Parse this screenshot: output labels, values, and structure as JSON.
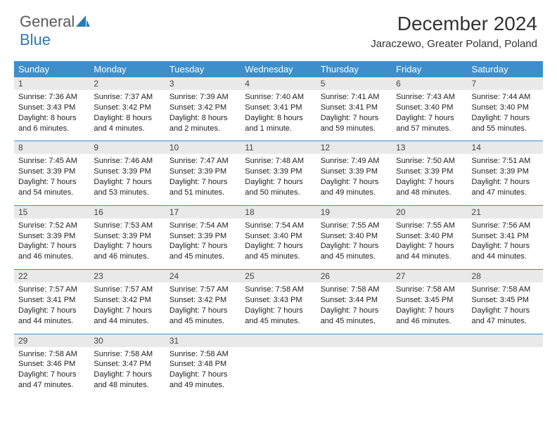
{
  "logo": {
    "part1": "General",
    "part2": "Blue"
  },
  "title": "December 2024",
  "location": "Jaraczewo, Greater Poland, Poland",
  "colors": {
    "header_bg": "#3d8ecb",
    "header_text": "#ffffff",
    "daynum_bg": "#e9e9e9",
    "rule": "#3d8ecb",
    "logo_gray": "#5a5a5a",
    "logo_blue": "#2a7ab8"
  },
  "daynames": [
    "Sunday",
    "Monday",
    "Tuesday",
    "Wednesday",
    "Thursday",
    "Friday",
    "Saturday"
  ],
  "weeks": [
    [
      {
        "n": "1",
        "sr": "Sunrise: 7:36 AM",
        "ss": "Sunset: 3:43 PM",
        "dl": "Daylight: 8 hours and 6 minutes."
      },
      {
        "n": "2",
        "sr": "Sunrise: 7:37 AM",
        "ss": "Sunset: 3:42 PM",
        "dl": "Daylight: 8 hours and 4 minutes."
      },
      {
        "n": "3",
        "sr": "Sunrise: 7:39 AM",
        "ss": "Sunset: 3:42 PM",
        "dl": "Daylight: 8 hours and 2 minutes."
      },
      {
        "n": "4",
        "sr": "Sunrise: 7:40 AM",
        "ss": "Sunset: 3:41 PM",
        "dl": "Daylight: 8 hours and 1 minute."
      },
      {
        "n": "5",
        "sr": "Sunrise: 7:41 AM",
        "ss": "Sunset: 3:41 PM",
        "dl": "Daylight: 7 hours and 59 minutes."
      },
      {
        "n": "6",
        "sr": "Sunrise: 7:43 AM",
        "ss": "Sunset: 3:40 PM",
        "dl": "Daylight: 7 hours and 57 minutes."
      },
      {
        "n": "7",
        "sr": "Sunrise: 7:44 AM",
        "ss": "Sunset: 3:40 PM",
        "dl": "Daylight: 7 hours and 55 minutes."
      }
    ],
    [
      {
        "n": "8",
        "sr": "Sunrise: 7:45 AM",
        "ss": "Sunset: 3:39 PM",
        "dl": "Daylight: 7 hours and 54 minutes."
      },
      {
        "n": "9",
        "sr": "Sunrise: 7:46 AM",
        "ss": "Sunset: 3:39 PM",
        "dl": "Daylight: 7 hours and 53 minutes."
      },
      {
        "n": "10",
        "sr": "Sunrise: 7:47 AM",
        "ss": "Sunset: 3:39 PM",
        "dl": "Daylight: 7 hours and 51 minutes."
      },
      {
        "n": "11",
        "sr": "Sunrise: 7:48 AM",
        "ss": "Sunset: 3:39 PM",
        "dl": "Daylight: 7 hours and 50 minutes."
      },
      {
        "n": "12",
        "sr": "Sunrise: 7:49 AM",
        "ss": "Sunset: 3:39 PM",
        "dl": "Daylight: 7 hours and 49 minutes."
      },
      {
        "n": "13",
        "sr": "Sunrise: 7:50 AM",
        "ss": "Sunset: 3:39 PM",
        "dl": "Daylight: 7 hours and 48 minutes."
      },
      {
        "n": "14",
        "sr": "Sunrise: 7:51 AM",
        "ss": "Sunset: 3:39 PM",
        "dl": "Daylight: 7 hours and 47 minutes."
      }
    ],
    [
      {
        "n": "15",
        "sr": "Sunrise: 7:52 AM",
        "ss": "Sunset: 3:39 PM",
        "dl": "Daylight: 7 hours and 46 minutes."
      },
      {
        "n": "16",
        "sr": "Sunrise: 7:53 AM",
        "ss": "Sunset: 3:39 PM",
        "dl": "Daylight: 7 hours and 46 minutes."
      },
      {
        "n": "17",
        "sr": "Sunrise: 7:54 AM",
        "ss": "Sunset: 3:39 PM",
        "dl": "Daylight: 7 hours and 45 minutes."
      },
      {
        "n": "18",
        "sr": "Sunrise: 7:54 AM",
        "ss": "Sunset: 3:40 PM",
        "dl": "Daylight: 7 hours and 45 minutes."
      },
      {
        "n": "19",
        "sr": "Sunrise: 7:55 AM",
        "ss": "Sunset: 3:40 PM",
        "dl": "Daylight: 7 hours and 45 minutes."
      },
      {
        "n": "20",
        "sr": "Sunrise: 7:55 AM",
        "ss": "Sunset: 3:40 PM",
        "dl": "Daylight: 7 hours and 44 minutes."
      },
      {
        "n": "21",
        "sr": "Sunrise: 7:56 AM",
        "ss": "Sunset: 3:41 PM",
        "dl": "Daylight: 7 hours and 44 minutes."
      }
    ],
    [
      {
        "n": "22",
        "sr": "Sunrise: 7:57 AM",
        "ss": "Sunset: 3:41 PM",
        "dl": "Daylight: 7 hours and 44 minutes."
      },
      {
        "n": "23",
        "sr": "Sunrise: 7:57 AM",
        "ss": "Sunset: 3:42 PM",
        "dl": "Daylight: 7 hours and 44 minutes."
      },
      {
        "n": "24",
        "sr": "Sunrise: 7:57 AM",
        "ss": "Sunset: 3:42 PM",
        "dl": "Daylight: 7 hours and 45 minutes."
      },
      {
        "n": "25",
        "sr": "Sunrise: 7:58 AM",
        "ss": "Sunset: 3:43 PM",
        "dl": "Daylight: 7 hours and 45 minutes."
      },
      {
        "n": "26",
        "sr": "Sunrise: 7:58 AM",
        "ss": "Sunset: 3:44 PM",
        "dl": "Daylight: 7 hours and 45 minutes."
      },
      {
        "n": "27",
        "sr": "Sunrise: 7:58 AM",
        "ss": "Sunset: 3:45 PM",
        "dl": "Daylight: 7 hours and 46 minutes."
      },
      {
        "n": "28",
        "sr": "Sunrise: 7:58 AM",
        "ss": "Sunset: 3:45 PM",
        "dl": "Daylight: 7 hours and 47 minutes."
      }
    ],
    [
      {
        "n": "29",
        "sr": "Sunrise: 7:58 AM",
        "ss": "Sunset: 3:46 PM",
        "dl": "Daylight: 7 hours and 47 minutes."
      },
      {
        "n": "30",
        "sr": "Sunrise: 7:58 AM",
        "ss": "Sunset: 3:47 PM",
        "dl": "Daylight: 7 hours and 48 minutes."
      },
      {
        "n": "31",
        "sr": "Sunrise: 7:58 AM",
        "ss": "Sunset: 3:48 PM",
        "dl": "Daylight: 7 hours and 49 minutes."
      },
      null,
      null,
      null,
      null
    ]
  ]
}
